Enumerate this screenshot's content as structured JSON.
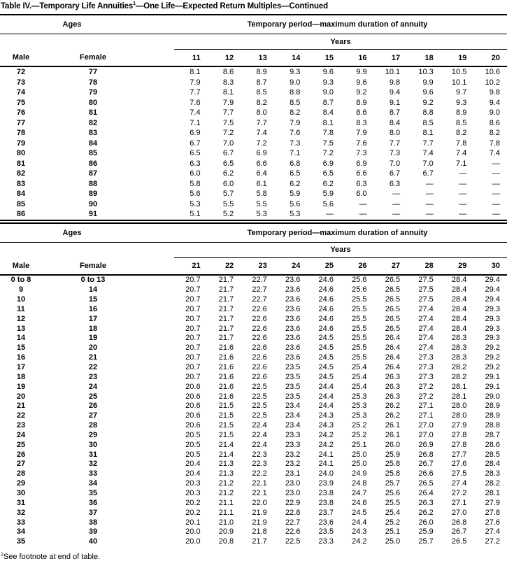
{
  "title": {
    "prefix": "Table IV.—Temporary Life Annuities",
    "footnote_marker": "1",
    "suffix": "—One Life—Expected Return Multiples—Continued"
  },
  "footnote": {
    "marker": "1",
    "text": "See footnote at end of table."
  },
  "colors": {
    "text": "#000000",
    "background": "#ffffff",
    "rule": "#000000"
  },
  "tables": [
    {
      "ages_label": "Ages",
      "period_label": "Temporary period—maximum duration of annuity",
      "years_label": "Years",
      "male_label": "Male",
      "female_label": "Female",
      "year_columns": [
        "11",
        "12",
        "13",
        "14",
        "15",
        "16",
        "17",
        "18",
        "19",
        "20"
      ],
      "rows": [
        {
          "male": "72",
          "female": "77",
          "values": [
            "8.1",
            "8.6",
            "8.9",
            "9.3",
            "9.6",
            "9.9",
            "10.1",
            "10.3",
            "10.5",
            "10.6"
          ]
        },
        {
          "male": "73",
          "female": "78",
          "values": [
            "7.9",
            "8.3",
            "8.7",
            "9.0",
            "9.3",
            "9.6",
            "9.8",
            "9.9",
            "10.1",
            "10.2"
          ]
        },
        {
          "male": "74",
          "female": "79",
          "values": [
            "7.7",
            "8.1",
            "8.5",
            "8.8",
            "9.0",
            "9.2",
            "9.4",
            "9.6",
            "9.7",
            "9.8"
          ]
        },
        {
          "male": "75",
          "female": "80",
          "values": [
            "7.6",
            "7.9",
            "8.2",
            "8.5",
            "8.7",
            "8.9",
            "9.1",
            "9.2",
            "9.3",
            "9.4"
          ]
        },
        {
          "male": "76",
          "female": "81",
          "values": [
            "7.4",
            "7.7",
            "8.0",
            "8.2",
            "8.4",
            "8.6",
            "8.7",
            "8.8",
            "8.9",
            "9.0"
          ]
        },
        {
          "male": "77",
          "female": "82",
          "values": [
            "7.1",
            "7.5",
            "7.7",
            "7.9",
            "8.1",
            "8.3",
            "8.4",
            "8.5",
            "8.5",
            "8.6"
          ]
        },
        {
          "male": "78",
          "female": "83",
          "values": [
            "6.9",
            "7.2",
            "7.4",
            "7.6",
            "7.8",
            "7.9",
            "8.0",
            "8.1",
            "8.2",
            "8.2"
          ]
        },
        {
          "male": "79",
          "female": "84",
          "values": [
            "6.7",
            "7.0",
            "7.2",
            "7.3",
            "7.5",
            "7.6",
            "7.7",
            "7.7",
            "7.8",
            "7.8"
          ]
        },
        {
          "male": "80",
          "female": "85",
          "values": [
            "6.5",
            "6.7",
            "6.9",
            "7.1",
            "7.2",
            "7.3",
            "7.3",
            "7.4",
            "7.4",
            "7.4"
          ]
        },
        {
          "male": "81",
          "female": "86",
          "values": [
            "6.3",
            "6.5",
            "6.6",
            "6.8",
            "6.9",
            "6.9",
            "7.0",
            "7.0",
            "7.1",
            "—"
          ]
        },
        {
          "male": "82",
          "female": "87",
          "values": [
            "6.0",
            "6.2",
            "6.4",
            "6.5",
            "6.5",
            "6.6",
            "6.7",
            "6.7",
            "—",
            "—"
          ]
        },
        {
          "male": "83",
          "female": "88",
          "values": [
            "5.8",
            "6.0",
            "6.1",
            "6.2",
            "6.2",
            "6.3",
            "6.3",
            "—",
            "—",
            "—"
          ]
        },
        {
          "male": "84",
          "female": "89",
          "values": [
            "5.6",
            "5.7",
            "5.8",
            "5.9",
            "5.9",
            "6.0",
            "—",
            "—",
            "—",
            "—"
          ]
        },
        {
          "male": "85",
          "female": "90",
          "values": [
            "5.3",
            "5.5",
            "5.5",
            "5.6",
            "5.6",
            "—",
            "—",
            "—",
            "—",
            "—"
          ]
        },
        {
          "male": "86",
          "female": "91",
          "values": [
            "5.1",
            "5.2",
            "5.3",
            "5.3",
            "—",
            "—",
            "—",
            "—",
            "—",
            "—"
          ]
        }
      ]
    },
    {
      "ages_label": "Ages",
      "period_label": "Temporary period—maximum duration of annuity",
      "years_label": "Years",
      "male_label": "Male",
      "female_label": "Female",
      "year_columns": [
        "21",
        "22",
        "23",
        "24",
        "25",
        "26",
        "27",
        "28",
        "29",
        "30"
      ],
      "rows": [
        {
          "male": "0 to 8",
          "female": "0 to 13",
          "values": [
            "20.7",
            "21.7",
            "22.7",
            "23.6",
            "24.6",
            "25.6",
            "26.5",
            "27.5",
            "28.4",
            "29.4"
          ]
        },
        {
          "male": "9",
          "female": "14",
          "values": [
            "20.7",
            "21.7",
            "22.7",
            "23.6",
            "24.6",
            "25.6",
            "26.5",
            "27.5",
            "28.4",
            "29.4"
          ]
        },
        {
          "male": "10",
          "female": "15",
          "values": [
            "20.7",
            "21.7",
            "22.7",
            "23.6",
            "24.6",
            "25.5",
            "26.5",
            "27.5",
            "28.4",
            "29.4"
          ]
        },
        {
          "male": "11",
          "female": "16",
          "values": [
            "20.7",
            "21.7",
            "22.6",
            "23.6",
            "24.6",
            "25.5",
            "26.5",
            "27.4",
            "28.4",
            "29.3"
          ]
        },
        {
          "male": "12",
          "female": "17",
          "values": [
            "20.7",
            "21.7",
            "22.6",
            "23.6",
            "24.6",
            "25.5",
            "26.5",
            "27.4",
            "28.4",
            "29.3"
          ]
        },
        {
          "male": "13",
          "female": "18",
          "values": [
            "20.7",
            "21.7",
            "22.6",
            "23.6",
            "24.6",
            "25.5",
            "26.5",
            "27.4",
            "28.4",
            "29.3"
          ]
        },
        {
          "male": "14",
          "female": "19",
          "values": [
            "20.7",
            "21.7",
            "22.6",
            "23.6",
            "24.5",
            "25.5",
            "26.4",
            "27.4",
            "28.3",
            "29.3"
          ]
        },
        {
          "male": "15",
          "female": "20",
          "values": [
            "20.7",
            "21.6",
            "22.6",
            "23.6",
            "24.5",
            "25.5",
            "26.4",
            "27.4",
            "28.3",
            "29.2"
          ]
        },
        {
          "male": "16",
          "female": "21",
          "values": [
            "20.7",
            "21.6",
            "22.6",
            "23.6",
            "24.5",
            "25.5",
            "26.4",
            "27.3",
            "28.3",
            "29.2"
          ]
        },
        {
          "male": "17",
          "female": "22",
          "values": [
            "20.7",
            "21.6",
            "22.6",
            "23.5",
            "24.5",
            "25.4",
            "26.4",
            "27.3",
            "28.2",
            "29.2"
          ]
        },
        {
          "male": "18",
          "female": "23",
          "values": [
            "20.7",
            "21.6",
            "22.6",
            "23.5",
            "24.5",
            "25.4",
            "26.3",
            "27.3",
            "28.2",
            "29.1"
          ]
        },
        {
          "male": "19",
          "female": "24",
          "values": [
            "20.6",
            "21.6",
            "22.5",
            "23.5",
            "24.4",
            "25.4",
            "26.3",
            "27.2",
            "28.1",
            "29.1"
          ]
        },
        {
          "male": "20",
          "female": "25",
          "values": [
            "20.6",
            "21.6",
            "22.5",
            "23.5",
            "24.4",
            "25.3",
            "26.3",
            "27.2",
            "28.1",
            "29.0"
          ]
        },
        {
          "male": "21",
          "female": "26",
          "values": [
            "20.6",
            "21.5",
            "22.5",
            "23.4",
            "24.4",
            "25.3",
            "26.2",
            "27.1",
            "28.0",
            "28.9"
          ]
        },
        {
          "male": "22",
          "female": "27",
          "values": [
            "20.6",
            "21.5",
            "22.5",
            "23.4",
            "24.3",
            "25.3",
            "26.2",
            "27.1",
            "28.0",
            "28.9"
          ]
        },
        {
          "male": "23",
          "female": "28",
          "values": [
            "20.6",
            "21.5",
            "22.4",
            "23.4",
            "24.3",
            "25.2",
            "26.1",
            "27.0",
            "27.9",
            "28.8"
          ]
        },
        {
          "male": "24",
          "female": "29",
          "values": [
            "20.5",
            "21.5",
            "22.4",
            "23.3",
            "24.2",
            "25.2",
            "26.1",
            "27.0",
            "27.8",
            "28.7"
          ]
        },
        {
          "male": "25",
          "female": "30",
          "values": [
            "20.5",
            "21.4",
            "22.4",
            "23.3",
            "24.2",
            "25.1",
            "26.0",
            "26.9",
            "27.8",
            "28.6"
          ]
        },
        {
          "male": "26",
          "female": "31",
          "values": [
            "20.5",
            "21.4",
            "22.3",
            "23.2",
            "24.1",
            "25.0",
            "25.9",
            "26.8",
            "27.7",
            "28.5"
          ]
        },
        {
          "male": "27",
          "female": "32",
          "values": [
            "20.4",
            "21.3",
            "22.3",
            "23.2",
            "24.1",
            "25.0",
            "25.8",
            "26.7",
            "27.6",
            "28.4"
          ]
        },
        {
          "male": "28",
          "female": "33",
          "values": [
            "20.4",
            "21.3",
            "22.2",
            "23.1",
            "24.0",
            "24.9",
            "25.8",
            "26.6",
            "27.5",
            "28.3"
          ]
        },
        {
          "male": "29",
          "female": "34",
          "values": [
            "20.3",
            "21.2",
            "22.1",
            "23.0",
            "23.9",
            "24.8",
            "25.7",
            "26.5",
            "27.4",
            "28.2"
          ]
        },
        {
          "male": "30",
          "female": "35",
          "values": [
            "20.3",
            "21.2",
            "22.1",
            "23.0",
            "23.8",
            "24.7",
            "25.6",
            "26.4",
            "27.2",
            "28.1"
          ]
        },
        {
          "male": "31",
          "female": "36",
          "values": [
            "20.2",
            "21.1",
            "22.0",
            "22.9",
            "23.8",
            "24.6",
            "25.5",
            "26.3",
            "27.1",
            "27.9"
          ]
        },
        {
          "male": "32",
          "female": "37",
          "values": [
            "20.2",
            "21.1",
            "21.9",
            "22.8",
            "23.7",
            "24.5",
            "25.4",
            "26.2",
            "27.0",
            "27.8"
          ]
        },
        {
          "male": "33",
          "female": "38",
          "values": [
            "20.1",
            "21.0",
            "21.9",
            "22.7",
            "23.6",
            "24.4",
            "25.2",
            "26.0",
            "26.8",
            "27.6"
          ]
        },
        {
          "male": "34",
          "female": "39",
          "values": [
            "20.0",
            "20.9",
            "21.8",
            "22.6",
            "23.5",
            "24.3",
            "25.1",
            "25.9",
            "26.7",
            "27.4"
          ]
        },
        {
          "male": "35",
          "female": "40",
          "values": [
            "20.0",
            "20.8",
            "21.7",
            "22.5",
            "23.3",
            "24.2",
            "25.0",
            "25.7",
            "26.5",
            "27.2"
          ]
        }
      ]
    }
  ]
}
